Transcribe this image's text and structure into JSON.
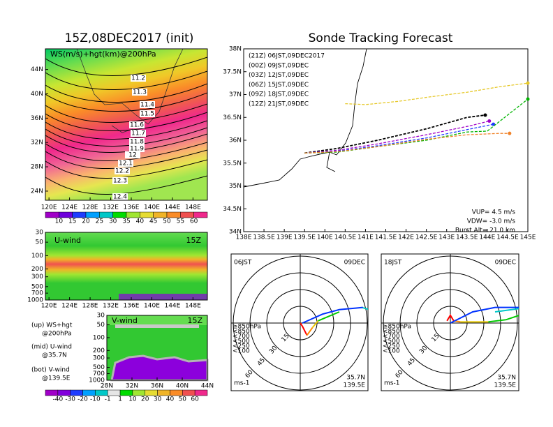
{
  "left_title": "15Z,08DEC2017 (init)",
  "ws_map": {
    "label": "WS(m/s)+hgt(km)@200hPa",
    "xlim": [
      119.3,
      150.8
    ],
    "ylim": [
      22.5,
      47.4
    ],
    "xticks": [
      {
        "value": 120,
        "label": "120E"
      },
      {
        "value": 124,
        "label": "124E"
      },
      {
        "value": 128,
        "label": "128E"
      },
      {
        "value": 132,
        "label": "132E"
      },
      {
        "value": 136,
        "label": "136E"
      },
      {
        "value": 140,
        "label": "140E"
      },
      {
        "value": 144,
        "label": "144E"
      },
      {
        "value": 148,
        "label": "148E"
      }
    ],
    "yticks": [
      {
        "value": 24,
        "label": "24N"
      },
      {
        "value": 28,
        "label": "28N"
      },
      {
        "value": 32,
        "label": "32N"
      },
      {
        "value": 36,
        "label": "36N"
      },
      {
        "value": 40,
        "label": "40N"
      },
      {
        "value": 44,
        "label": "44N"
      }
    ],
    "contours": [
      11.2,
      11.3,
      11.4,
      11.5,
      11.6,
      11.7,
      11.8,
      11.9,
      12,
      12.1,
      12.2,
      12.3,
      12.4
    ]
  },
  "ws_colorbar": {
    "labels": [
      10,
      15,
      20,
      25,
      30,
      35,
      40,
      45,
      50,
      55,
      60
    ],
    "colors": [
      "#a000c8",
      "#6e00dc",
      "#1e3cff",
      "#00a0ff",
      "#00c8c8",
      "#00dc00",
      "#a0e632",
      "#e6dc32",
      "#f0b428",
      "#fa8c28",
      "#f05050",
      "#f0288c"
    ]
  },
  "u_wind": {
    "label": "U-wind",
    "time": "15Z",
    "xlim": [
      119.3,
      150.8
    ],
    "xticks": [
      {
        "value": 120,
        "label": "120E"
      },
      {
        "value": 124,
        "label": "124E"
      },
      {
        "value": 128,
        "label": "128E"
      },
      {
        "value": 132,
        "label": "132E"
      },
      {
        "value": 136,
        "label": "136E"
      },
      {
        "value": 140,
        "label": "140E"
      },
      {
        "value": 144,
        "label": "144E"
      },
      {
        "value": 148,
        "label": "148E"
      }
    ],
    "ylim": [
      30,
      1000
    ],
    "yticks": [
      30,
      50,
      100,
      200,
      300,
      500,
      700,
      1000
    ],
    "log_scale": true
  },
  "notes": [
    "(up) WS+hgt",
    "@200hPa",
    "(mid) U-wind",
    "@35.7N",
    "(bot) V-wind",
    "@139.5E"
  ],
  "v_wind": {
    "label": "V-wind",
    "time": "15Z",
    "xlim": [
      28,
      44
    ],
    "xticks": [
      {
        "value": 28,
        "label": "28N"
      },
      {
        "value": 32,
        "label": "32N"
      },
      {
        "value": 36,
        "label": "36N"
      },
      {
        "value": 40,
        "label": "40N"
      },
      {
        "value": 44,
        "label": "44N"
      }
    ],
    "ylim": [
      30,
      1000
    ],
    "yticks": [
      30,
      50,
      100,
      200,
      300,
      500,
      700,
      1000
    ],
    "log_scale": true
  },
  "v_colorbar": {
    "labels": [
      -40,
      -30,
      -20,
      -10,
      -1,
      1,
      10,
      20,
      30,
      40,
      50,
      60
    ],
    "colors": [
      "#a000c8",
      "#8200dc",
      "#1e3cff",
      "#00a0ff",
      "#00c8c8",
      "#e6e6e6",
      "#00dc00",
      "#a0e632",
      "#e6dc32",
      "#f0b428",
      "#fa8c28",
      "#f05050",
      "#f0288c"
    ]
  },
  "track": {
    "title": "Sonde Tracking Forecast",
    "xlim": [
      138,
      145
    ],
    "ylim": [
      34,
      38
    ],
    "xticks": [
      {
        "value": 138,
        "label": "138E"
      },
      {
        "value": 138.5,
        "label": "138.5E"
      },
      {
        "value": 139,
        "label": "139E"
      },
      {
        "value": 139.5,
        "label": "139.5E"
      },
      {
        "value": 140,
        "label": "140E"
      },
      {
        "value": 140.5,
        "label": "140.5E"
      },
      {
        "value": 141,
        "label": "141E"
      },
      {
        "value": 141.5,
        "label": "141.5E"
      },
      {
        "value": 142,
        "label": "142E"
      },
      {
        "value": 142.5,
        "label": "142.5E"
      },
      {
        "value": 143,
        "label": "143E"
      },
      {
        "value": 143.5,
        "label": "143.5E"
      },
      {
        "value": 144,
        "label": "144E"
      },
      {
        "value": 144.5,
        "label": "144.5E"
      },
      {
        "value": 145,
        "label": "145E"
      }
    ],
    "yticks": [
      {
        "value": 34,
        "label": "34N"
      },
      {
        "value": 34.5,
        "label": "34.5N"
      },
      {
        "value": 35,
        "label": "35N"
      },
      {
        "value": 35.5,
        "label": "35.5N"
      },
      {
        "value": 36,
        "label": "36N"
      },
      {
        "value": 36.5,
        "label": "36.5N"
      },
      {
        "value": 37,
        "label": "37N"
      },
      {
        "value": 37.5,
        "label": "37.5N"
      },
      {
        "value": 38,
        "label": "38N"
      }
    ],
    "series": [
      {
        "name": "(21Z) 06JST,09DEC2017",
        "color": "#000000",
        "lon": [
          139.5,
          140.3,
          141.3,
          142.5,
          143.5,
          143.95
        ],
        "lat": [
          35.72,
          35.82,
          36.0,
          36.25,
          36.5,
          36.55
        ]
      },
      {
        "name": "(00Z) 09JST,09DEC",
        "color": "#a000c8",
        "lon": [
          139.5,
          140.3,
          141.3,
          142.5,
          143.6,
          144.05
        ],
        "lat": [
          35.72,
          35.78,
          35.92,
          36.12,
          36.32,
          36.42
        ]
      },
      {
        "name": "(03Z) 12JST,09DEC",
        "color": "#1e3cff",
        "lon": [
          139.5,
          140.3,
          141.3,
          142.5,
          143.6,
          144.15
        ],
        "lat": [
          35.72,
          35.76,
          35.88,
          36.05,
          36.25,
          36.35
        ]
      },
      {
        "name": "(06Z) 15JST,09DEC",
        "color": "#00b400",
        "lon": [
          139.5,
          140.3,
          141.3,
          142.5,
          143.5,
          144.0,
          144.5,
          145.0
        ],
        "lat": [
          35.72,
          35.74,
          35.86,
          36.0,
          36.18,
          36.2,
          36.55,
          36.9
        ]
      },
      {
        "name": "(09Z) 18JST,09DEC",
        "color": "#e6c828",
        "lon": [
          140.5,
          141.0,
          141.8,
          142.6,
          143.5,
          144.3,
          145.0
        ],
        "lat": [
          36.8,
          36.78,
          36.85,
          36.95,
          37.05,
          37.17,
          37.25
        ]
      },
      {
        "name": "(12Z) 21JST,09DEC",
        "color": "#f08228",
        "lon": [
          139.5,
          140.3,
          141.3,
          142.5,
          143.5,
          144.3,
          144.55
        ],
        "lat": [
          35.72,
          35.75,
          35.86,
          36.02,
          36.12,
          36.15,
          36.15
        ]
      }
    ],
    "params": [
      "VUP= 4.5 m/s",
      "VDW= -3.0 m/s",
      "Burst Alt= 21.0 km"
    ]
  },
  "hodo_legend": [
    {
      "label": "≥850hPa",
      "color": "#ff0000"
    },
    {
      "label": "<850",
      "color": "#ff8c00"
    },
    {
      "label": "<700",
      "color": "#e6c800"
    },
    {
      "label": "<500",
      "color": "#00c800"
    },
    {
      "label": "<250",
      "color": "#00c8c8"
    },
    {
      "label": "<100",
      "color": "#0032ff"
    }
  ],
  "hodographs": [
    {
      "time": "06JST",
      "date": "09DEC",
      "rings": [
        15,
        30,
        45,
        60
      ],
      "unit": "ms-1",
      "lat": "35.7N",
      "lon": "139.5E",
      "layers": [
        {
          "u": [
            0,
            2,
            6
          ],
          "v": [
            0,
            -3,
            -11
          ]
        },
        {
          "u": [
            6,
            11
          ],
          "v": [
            -11,
            -4
          ]
        },
        {
          "u": [
            11,
            16
          ],
          "v": [
            -4,
            2
          ]
        },
        {
          "u": [
            16,
            35
          ],
          "v": [
            2,
            10
          ]
        },
        {
          "u": [
            55,
            62
          ],
          "v": [
            14,
            12
          ]
        },
        {
          "u": [
            2,
            20,
            35,
            56
          ],
          "v": [
            0,
            8,
            12,
            14
          ]
        }
      ]
    },
    {
      "time": "18JST",
      "date": "09DEC",
      "rings": [
        15,
        30,
        45,
        60
      ],
      "unit": "ms-1",
      "lat": "35.7N",
      "lon": "139.5E",
      "layers": [
        {
          "u": [
            -3,
            0,
            3
          ],
          "v": [
            2,
            7,
            2
          ]
        },
        {
          "u": [
            3,
            9
          ],
          "v": [
            2,
            1
          ]
        },
        {
          "u": [
            9,
            34
          ],
          "v": [
            1,
            1
          ]
        },
        {
          "u": [
            34,
            50,
            62
          ],
          "v": [
            1,
            3,
            7
          ]
        },
        {
          "u": [
            40,
            62
          ],
          "v": [
            10,
            13
          ]
        },
        {
          "u": [
            0,
            20,
            40,
            62
          ],
          "v": [
            0,
            10,
            14,
            14
          ]
        }
      ]
    }
  ]
}
